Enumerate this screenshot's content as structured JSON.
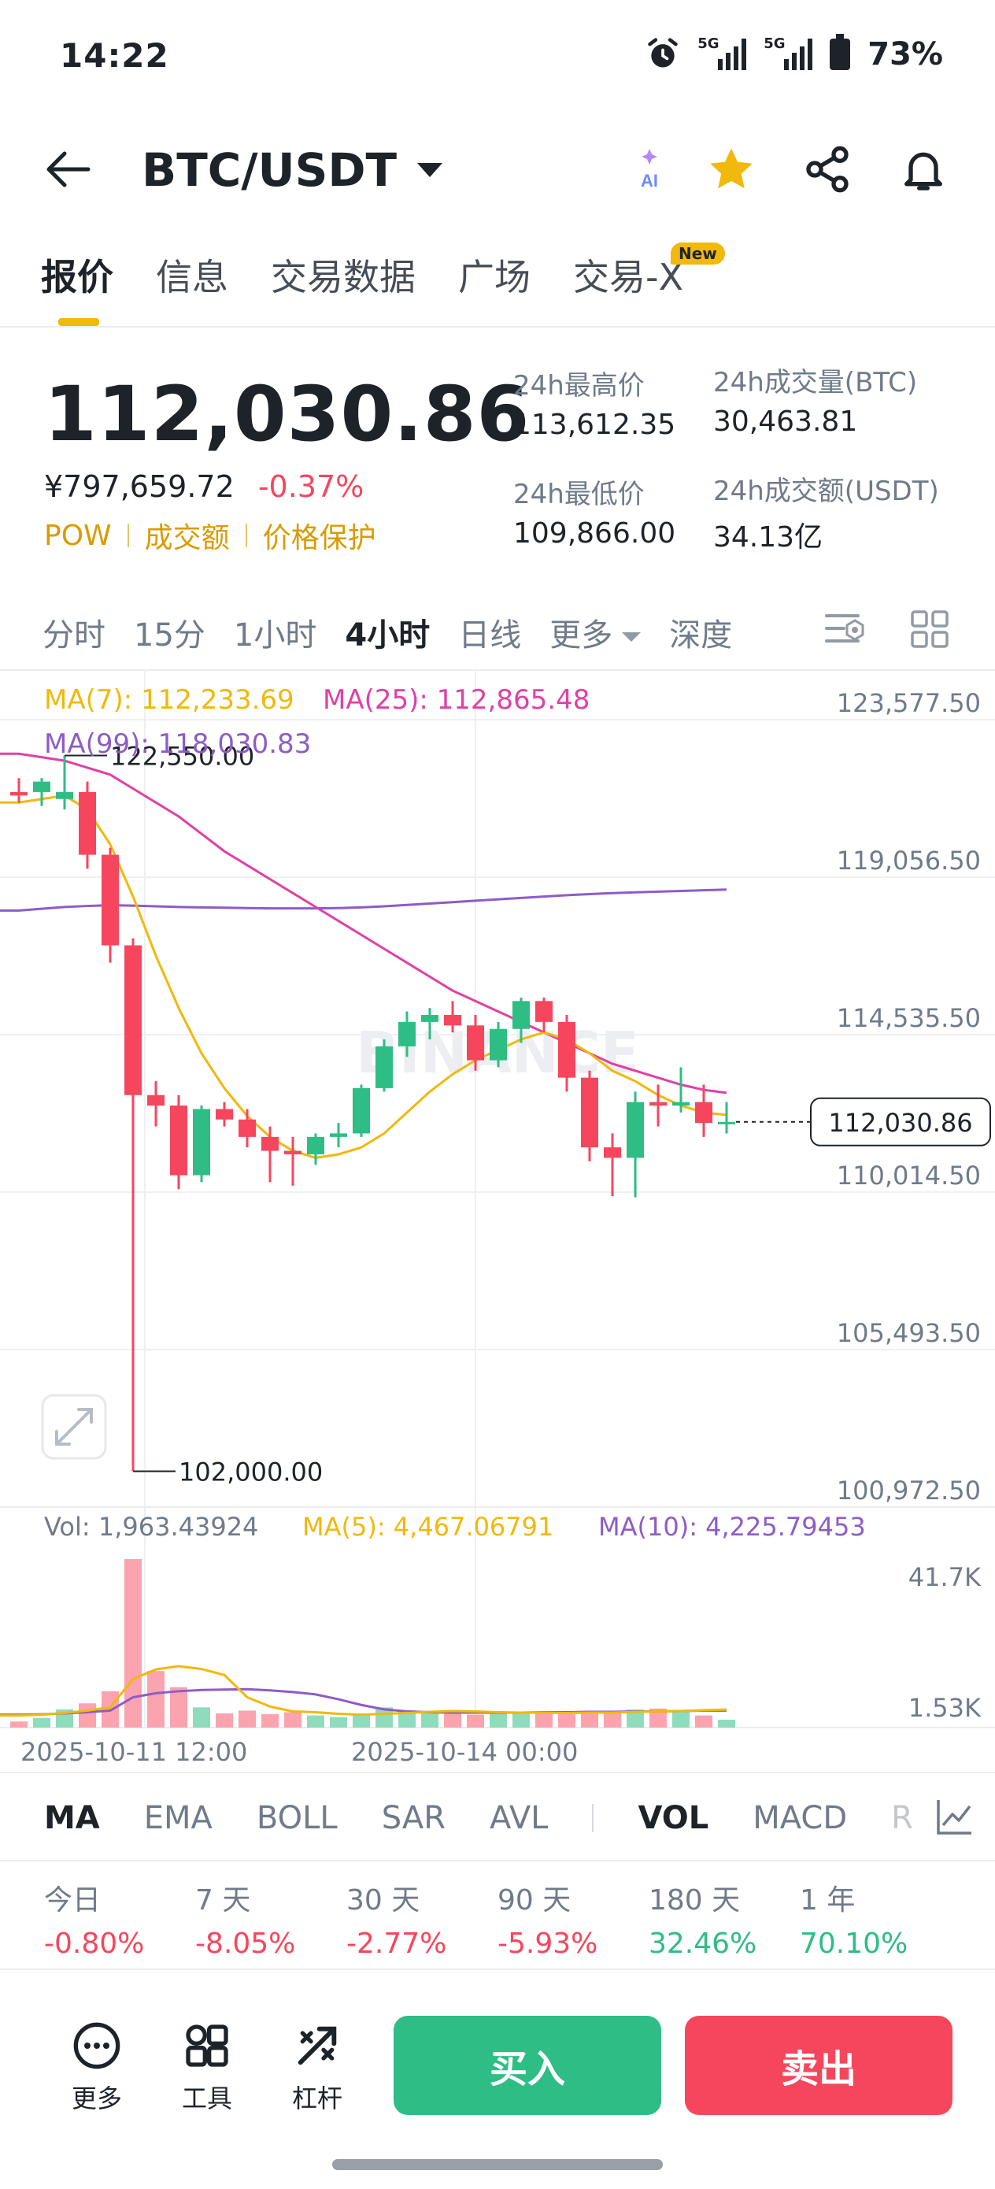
{
  "status_bar": {
    "time": "14:22",
    "network1": "5G",
    "network2": "5G",
    "battery": "73%"
  },
  "header": {
    "pair": "BTC/USDT",
    "ai_label": "AI"
  },
  "tabs": [
    {
      "label": "报价"
    },
    {
      "label": "信息"
    },
    {
      "label": "交易数据"
    },
    {
      "label": "广场"
    },
    {
      "label": "交易-X"
    }
  ],
  "new_badge": "New",
  "price": {
    "last": "112,030.86",
    "cny": "¥797,659.72",
    "change": "-0.37%",
    "tags": [
      "POW",
      "成交额",
      "价格保护"
    ]
  },
  "stats": {
    "high_label": "24h最高价",
    "high": "113,612.35",
    "low_label": "24h最低价",
    "low": "109,866.00",
    "vol_btc_label": "24h成交量(BTC)",
    "vol_btc": "30,463.81",
    "vol_usdt_label": "24h成交额(USDT)",
    "vol_usdt": "34.13亿"
  },
  "intervals": [
    "分时",
    "15分",
    "1小时",
    "4小时",
    "日线",
    "更多",
    "深度"
  ],
  "active_interval": "4小时",
  "ma_legend": {
    "ma7": "MA(7): 112,233.69",
    "ma25": "MA(25): 112,865.48",
    "ma99": "MA(99): 118,030.83"
  },
  "vol_legend": {
    "vol": "Vol: 1,963.43924",
    "ma5": "MA(5): 4,467.06791",
    "ma10": "MA(10): 4,225.79453"
  },
  "vol_axis": [
    "41.7K",
    "1.53K"
  ],
  "time_labels": [
    "2025-10-11 12:00",
    "2025-10-14 00:00"
  ],
  "watermark": "BINANCE",
  "colors": {
    "up": "#2ebd85",
    "down": "#f6465d",
    "ma7": "#f0b90b",
    "ma25": "#e040a6",
    "ma99": "#8e5cc6",
    "accent": "#f0b90b"
  },
  "chart_data": {
    "type": "candlestick",
    "ylim": [
      100972.5,
      123577.5
    ],
    "y_ticks": [
      123577.5,
      119056.5,
      114535.5,
      110014.5,
      105493.5,
      100972.5
    ],
    "y_tick_labels": [
      "123,577.50",
      "119,056.50",
      "114,535.50",
      "110,014.50",
      "105,493.50",
      "100,972.50"
    ],
    "current_price_label": "112,030.86",
    "current_price": 112030.86,
    "high_marker": {
      "label": "122,550.00",
      "value": 122550.0
    },
    "low_marker": {
      "label": "102,000.00",
      "value": 102000.0
    },
    "candles": [
      [
        121500,
        121900,
        121200,
        121400
      ],
      [
        121500,
        121900,
        121100,
        121800
      ],
      [
        121300,
        122550,
        121000,
        121500
      ],
      [
        121500,
        121800,
        119300,
        119700
      ],
      [
        119700,
        119900,
        116600,
        117100
      ],
      [
        117100,
        117300,
        102000,
        112800
      ],
      [
        112800,
        113200,
        111900,
        112500
      ],
      [
        112500,
        112800,
        110100,
        110500
      ],
      [
        110500,
        112500,
        110300,
        112400
      ],
      [
        112400,
        112600,
        111900,
        112100
      ],
      [
        112100,
        112400,
        111300,
        111600
      ],
      [
        111600,
        111900,
        110300,
        111200
      ],
      [
        111200,
        111600,
        110200,
        111100
      ],
      [
        111100,
        111700,
        110800,
        111600
      ],
      [
        111600,
        112000,
        111300,
        111700
      ],
      [
        111700,
        113100,
        111600,
        113000
      ],
      [
        113000,
        114400,
        112900,
        114200
      ],
      [
        114200,
        115200,
        113900,
        114900
      ],
      [
        114900,
        115300,
        114400,
        115100
      ],
      [
        115100,
        115500,
        114600,
        114800
      ],
      [
        114800,
        115100,
        113500,
        113800
      ],
      [
        113800,
        114900,
        113600,
        114700
      ],
      [
        114700,
        115600,
        114300,
        115500
      ],
      [
        115500,
        115600,
        114600,
        114900
      ],
      [
        114900,
        115100,
        112900,
        113300
      ],
      [
        113300,
        113500,
        110900,
        111300
      ],
      [
        111300,
        111700,
        109900,
        111000
      ],
      [
        111000,
        112900,
        109866,
        112600
      ],
      [
        112600,
        113100,
        111900,
        112500
      ],
      [
        112500,
        113600,
        112300,
        112600
      ],
      [
        112600,
        113100,
        111600,
        112000
      ],
      [
        112000,
        112600,
        111700,
        112030.86
      ]
    ],
    "ma7": [
      121200,
      121300,
      121400,
      121000,
      120000,
      118500,
      116800,
      115300,
      114000,
      113000,
      112200,
      111600,
      111200,
      111000,
      111100,
      111300,
      111700,
      112300,
      112900,
      113400,
      113800,
      114100,
      114400,
      114600,
      114400,
      114000,
      113500,
      113200,
      112800,
      112500,
      112300,
      112233.69
    ],
    "ma25": [
      122600,
      122500,
      122400,
      122200,
      122000,
      121600,
      121200,
      120800,
      120300,
      119800,
      119400,
      119000,
      118600,
      118200,
      117800,
      117400,
      117000,
      116600,
      116200,
      115800,
      115500,
      115200,
      114900,
      114600,
      114300,
      114000,
      113700,
      113500,
      113300,
      113100,
      112950,
      112865.48
    ],
    "ma99": [
      118100,
      118150,
      118200,
      118230,
      118250,
      118240,
      118220,
      118200,
      118190,
      118180,
      118170,
      118160,
      118160,
      118160,
      118170,
      118190,
      118220,
      118260,
      118300,
      118340,
      118380,
      118420,
      118460,
      118500,
      118540,
      118570,
      118600,
      118620,
      118640,
      118660,
      118680,
      118700
    ],
    "volumes": [
      1500,
      2400,
      4500,
      6000,
      9000,
      41700,
      14000,
      10000,
      5000,
      3500,
      4200,
      3300,
      3800,
      3000,
      2600,
      3500,
      5000,
      4300,
      4000,
      3600,
      3200,
      3900,
      3500,
      4000,
      3300,
      4100,
      3600,
      4500,
      4700,
      3900,
      3000,
      1963.43924
    ],
    "vol_ma5": [
      3000,
      3200,
      3600,
      4200,
      5000,
      12000,
      14400,
      15200,
      14500,
      13000,
      7500,
      5200,
      4000,
      3800,
      3400,
      3200,
      3400,
      3600,
      3900,
      4100,
      4000,
      3800,
      3700,
      3700,
      3600,
      3700,
      3700,
      3900,
      4000,
      4100,
      4300,
      4467.06791
    ],
    "vol_ma10": [
      3200,
      3300,
      3500,
      3800,
      4200,
      7500,
      8500,
      9000,
      9300,
      9400,
      9500,
      9200,
      8800,
      8200,
      7000,
      5600,
      4500,
      4000,
      3800,
      3700,
      3700,
      3700,
      3700,
      3800,
      3800,
      3900,
      3900,
      4000,
      4000,
      4100,
      4200,
      4225.79453
    ],
    "vol_ylim": [
      0,
      41700
    ]
  },
  "indicator_tabs": [
    "MA",
    "EMA",
    "BOLL",
    "SAR",
    "AVL",
    "VOL",
    "MACD",
    "R"
  ],
  "performance": [
    {
      "label": "今日",
      "value": "-0.80%"
    },
    {
      "label": "7 天",
      "value": "-8.05%"
    },
    {
      "label": "30 天",
      "value": "-2.77%"
    },
    {
      "label": "90 天",
      "value": "-5.93%"
    },
    {
      "label": "180 天",
      "value": "32.46%"
    },
    {
      "label": "1 年",
      "value": "70.10%"
    }
  ],
  "bottom_bar": {
    "more": "更多",
    "tools": "工具",
    "leverage": "杠杆",
    "buy": "买入",
    "sell": "卖出"
  }
}
